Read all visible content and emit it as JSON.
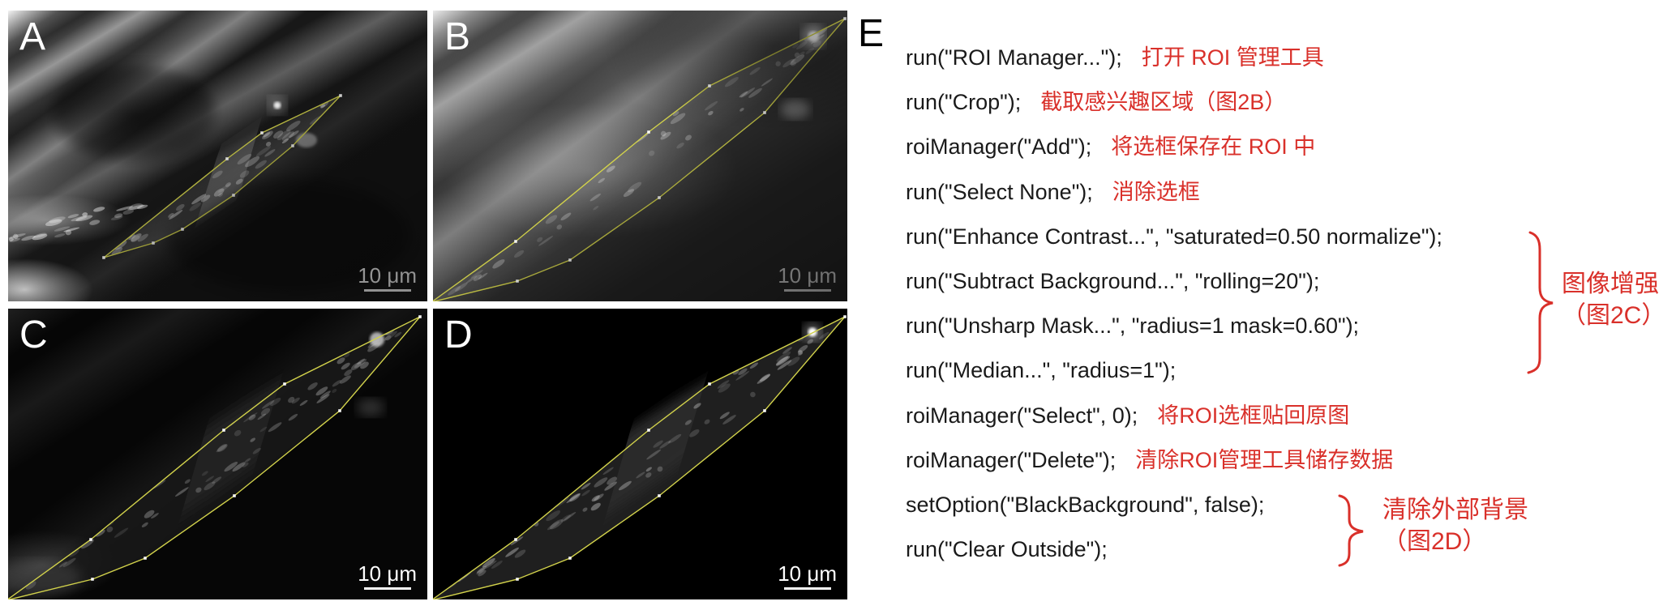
{
  "panels": [
    {
      "label": "A",
      "scale_bar": "10 μm"
    },
    {
      "label": "B",
      "scale_bar": "10 μm"
    },
    {
      "label": "C",
      "scale_bar": "10 μm"
    },
    {
      "label": "D",
      "scale_bar": "10 μm"
    }
  ],
  "code_panel": {
    "label": "E",
    "lines": [
      {
        "code": "run(\"ROI Manager...\");",
        "comment": "打开 ROI 管理工具"
      },
      {
        "code": "run(\"Crop\");",
        "comment": "截取感兴趣区域（图2B）"
      },
      {
        "code": "roiManager(\"Add\");",
        "comment": "将选框保存在 ROI 中"
      },
      {
        "code": "run(\"Select None\");",
        "comment": "消除选框"
      },
      {
        "code": "run(\"Enhance Contrast...\", \"saturated=0.50 normalize\");",
        "comment": ""
      },
      {
        "code": "run(\"Subtract Background...\", \"rolling=20\");",
        "comment": ""
      },
      {
        "code": "run(\"Unsharp Mask...\", \"radius=1 mask=0.60\");",
        "comment": ""
      },
      {
        "code": "run(\"Median...\", \"radius=1\");",
        "comment": ""
      },
      {
        "code": "roiManager(\"Select\", 0);",
        "comment": "将ROI选框贴回原图"
      },
      {
        "code": "roiManager(\"Delete\");",
        "comment": "清除ROI管理工具储存数据"
      },
      {
        "code": "setOption(\"BlackBackground\", false);",
        "comment": ""
      },
      {
        "code": "run(\"Clear Outside\");",
        "comment": ""
      }
    ],
    "brace_groups": [
      {
        "line1": "图像增强",
        "line2": "（图2C）"
      },
      {
        "line1": "清除外部背景",
        "line2": "（图2D）"
      }
    ]
  },
  "colors": {
    "annotation_red": "#d9302a",
    "roi_yellow": "#d2d24b"
  }
}
